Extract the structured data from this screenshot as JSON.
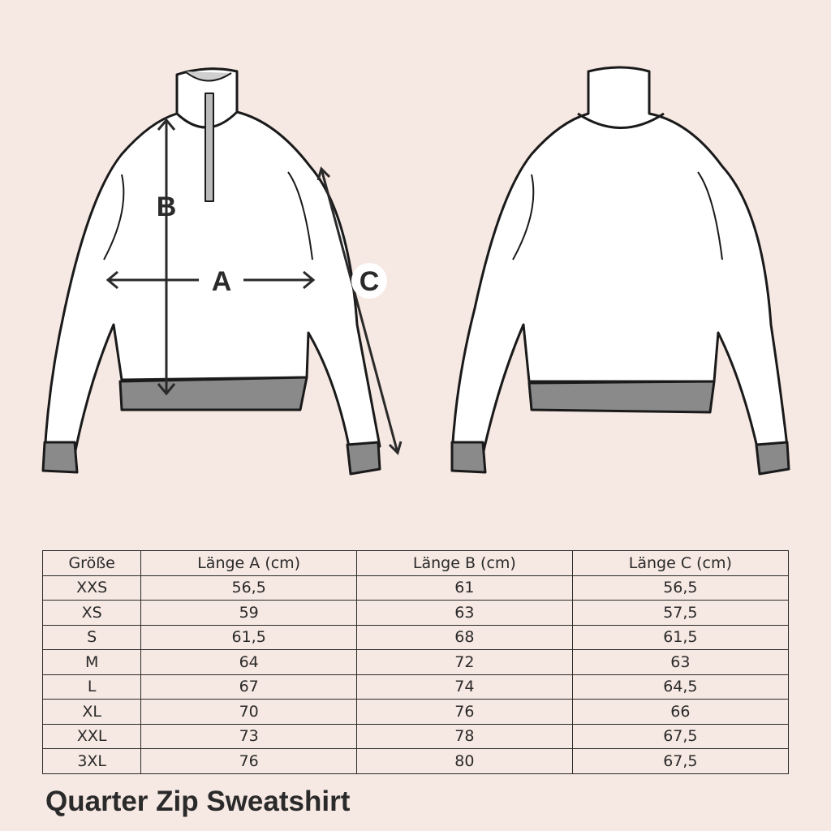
{
  "diagram": {
    "labels": {
      "a": "A",
      "b": "B",
      "c": "C"
    }
  },
  "table": {
    "headers": [
      "Größe",
      "Länge A (cm)",
      "Länge B (cm)",
      "Länge C (cm)"
    ],
    "rows": [
      [
        "XXS",
        "56,5",
        "61",
        "56,5"
      ],
      [
        "XS",
        "59",
        "63",
        "57,5"
      ],
      [
        "S",
        "61,5",
        "68",
        "61,5"
      ],
      [
        "M",
        "64",
        "72",
        "63"
      ],
      [
        "L",
        "67",
        "74",
        "64,5"
      ],
      [
        "XL",
        "70",
        "76",
        "66"
      ],
      [
        "XXL",
        "73",
        "78",
        "67,5"
      ],
      [
        "3XL",
        "76",
        "80",
        "67,5"
      ]
    ]
  },
  "title": "Quarter Zip Sweatshirt",
  "colors": {
    "background": "#f6e8e2",
    "ink": "#2a2a2a",
    "rib": "#8a8a8a"
  }
}
